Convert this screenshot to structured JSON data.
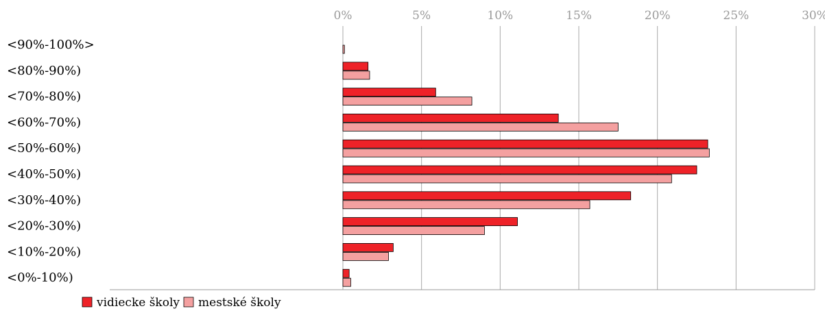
{
  "chart_data": {
    "type": "bar",
    "orientation": "horizontal",
    "categories": [
      "<90%-100%>",
      "<80%-90%)",
      "<70%-80%)",
      "<60%-70%)",
      "<50%-60%)",
      "<40%-50%)",
      "<30%-40%)",
      "<20%-30%)",
      "<10%-20%)",
      "<0%-10%)"
    ],
    "series": [
      {
        "name": "vidiecke školy",
        "color": "#ee2228",
        "values": [
          0.0,
          1.6,
          5.9,
          13.7,
          23.2,
          22.5,
          18.3,
          11.1,
          3.2,
          0.4
        ]
      },
      {
        "name": "mestské školy",
        "color": "#f4a0a0",
        "values": [
          0.1,
          1.7,
          8.2,
          17.5,
          23.3,
          20.9,
          15.7,
          9.0,
          2.9,
          0.5
        ]
      }
    ],
    "xaxis": {
      "min": 0,
      "max": 30,
      "step": 5,
      "tick_suffix": "%",
      "position": "top"
    },
    "grid": true,
    "legend": "bottom-left",
    "title": "",
    "xlabel": "",
    "ylabel": ""
  }
}
